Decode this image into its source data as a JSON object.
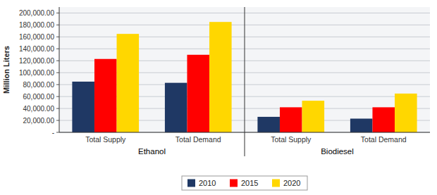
{
  "chart_data": {
    "type": "bar",
    "ylabel": "Million Liters",
    "categories": [
      "Total Supply",
      "Total Demand",
      "Total Supply",
      "Total Demand"
    ],
    "annotations": [
      "Ethanol",
      "Biodiesel"
    ],
    "series": [
      {
        "name": "2010",
        "color": "#1F3864",
        "values": [
          85000,
          83000,
          26000,
          23000
        ]
      },
      {
        "name": "2015",
        "color": "#FF0000",
        "values": [
          123000,
          130000,
          42000,
          42000
        ]
      },
      {
        "name": "2020",
        "color": "#FFD700",
        "values": [
          165000,
          185000,
          53000,
          65000
        ]
      }
    ],
    "ylim": [
      0,
      210000
    ],
    "yticks": [
      {
        "value": 0,
        "label": "-"
      },
      {
        "value": 20000,
        "label": "20,000.00"
      },
      {
        "value": 40000,
        "label": "40,000.00"
      },
      {
        "value": 60000,
        "label": "60,000.00"
      },
      {
        "value": 80000,
        "label": "80,000.00"
      },
      {
        "value": 100000,
        "label": "100,000.00"
      },
      {
        "value": 120000,
        "label": "120,000.00"
      },
      {
        "value": 140000,
        "label": "140,000.00"
      },
      {
        "value": 160000,
        "label": "160,000.00"
      },
      {
        "value": 180000,
        "label": "180,000.00"
      },
      {
        "value": 200000,
        "label": "200,000.00"
      }
    ],
    "grid": true,
    "legend": "bottom"
  }
}
